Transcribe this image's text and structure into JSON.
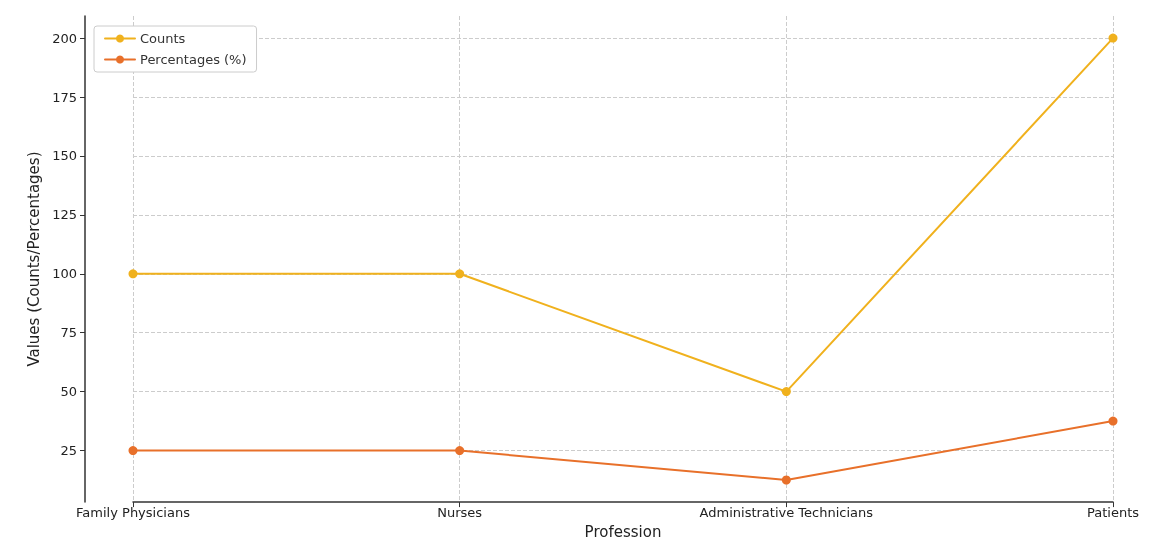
{
  "chart_data": {
    "type": "line",
    "xlabel": "Profession",
    "ylabel": "Values (Counts/Percentages)",
    "categories": [
      "Family Physicians",
      "Nurses",
      "Administrative Technicians",
      "Patients"
    ],
    "series": [
      {
        "name": "Counts",
        "color": "#f0b11d",
        "values": [
          100,
          100,
          50,
          200
        ]
      },
      {
        "name": "Percentages (%)",
        "color": "#e8702a",
        "values": [
          25,
          25,
          12.5,
          37.5
        ]
      }
    ],
    "ylim": [
      3.125,
      209.375
    ],
    "yticks": [
      25,
      50,
      75,
      100,
      125,
      150,
      175,
      200
    ],
    "grid": true,
    "legend": "top left",
    "marker": "circle",
    "line_style": "solid"
  }
}
